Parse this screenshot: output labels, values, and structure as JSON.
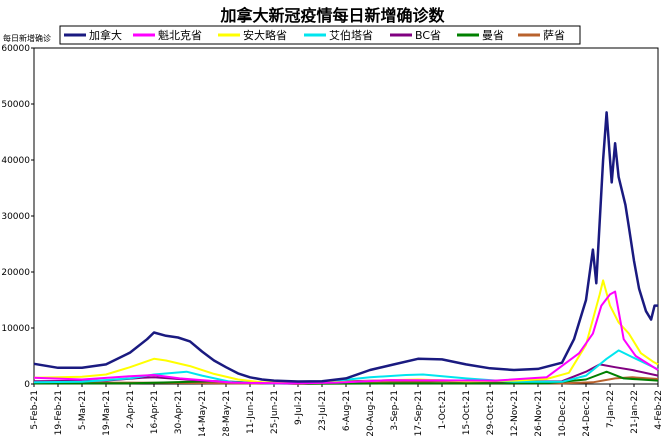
{
  "chart_data": {
    "type": "line",
    "title": "加拿大新冠疫情每日新增确诊数",
    "ylabel": "每日新增确诊",
    "ylim": [
      0,
      60000
    ],
    "yticks": [
      0,
      10000,
      20000,
      30000,
      40000,
      50000,
      60000
    ],
    "x_start": "2021-02-05",
    "x_end": "2022-02-04",
    "x_tick_labels": [
      "5-Feb-21",
      "19-Feb-21",
      "5-Mar-21",
      "19-Mar-21",
      "2-Apr-21",
      "16-Apr-21",
      "30-Apr-21",
      "14-May-21",
      "28-May-21",
      "11-Jun-21",
      "25-Jun-21",
      "9-Jul-21",
      "23-Jul-21",
      "6-Aug-21",
      "20-Aug-21",
      "3-Sep-21",
      "17-Sep-21",
      "1-Oct-21",
      "15-Oct-21",
      "29-Oct-21",
      "12-Nov-21",
      "26-Nov-21",
      "10-Dec-21",
      "24-Dec-21",
      "7-Jan-22",
      "21-Jan-22",
      "4-Feb-22"
    ],
    "grid": false,
    "legend_position": "top",
    "series": [
      {
        "name": "加拿大",
        "color": "#1a1a80",
        "points": [
          [
            "2021-02-05",
            3600
          ],
          [
            "2021-02-19",
            2900
          ],
          [
            "2021-03-05",
            2900
          ],
          [
            "2021-03-19",
            3500
          ],
          [
            "2021-04-02",
            5600
          ],
          [
            "2021-04-12",
            8000
          ],
          [
            "2021-04-16",
            9200
          ],
          [
            "2021-04-23",
            8600
          ],
          [
            "2021-04-30",
            8300
          ],
          [
            "2021-05-07",
            7600
          ],
          [
            "2021-05-14",
            5800
          ],
          [
            "2021-05-21",
            4200
          ],
          [
            "2021-05-28",
            3000
          ],
          [
            "2021-06-04",
            1900
          ],
          [
            "2021-06-11",
            1200
          ],
          [
            "2021-06-18",
            800
          ],
          [
            "2021-06-25",
            600
          ],
          [
            "2021-07-09",
            450
          ],
          [
            "2021-07-23",
            500
          ],
          [
            "2021-08-06",
            1000
          ],
          [
            "2021-08-20",
            2500
          ],
          [
            "2021-09-03",
            3500
          ],
          [
            "2021-09-17",
            4500
          ],
          [
            "2021-10-01",
            4400
          ],
          [
            "2021-10-15",
            3500
          ],
          [
            "2021-10-29",
            2800
          ],
          [
            "2021-11-12",
            2500
          ],
          [
            "2021-11-26",
            2700
          ],
          [
            "2021-12-10",
            3800
          ],
          [
            "2021-12-17",
            8000
          ],
          [
            "2021-12-24",
            15000
          ],
          [
            "2021-12-28",
            24000
          ],
          [
            "2021-12-30",
            18000
          ],
          [
            "2022-01-03",
            40000
          ],
          [
            "2022-01-05",
            48500
          ],
          [
            "2022-01-08",
            36000
          ],
          [
            "2022-01-10",
            43000
          ],
          [
            "2022-01-12",
            37000
          ],
          [
            "2022-01-16",
            32000
          ],
          [
            "2022-01-18",
            28000
          ],
          [
            "2022-01-21",
            22000
          ],
          [
            "2022-01-24",
            17000
          ],
          [
            "2022-01-28",
            13000
          ],
          [
            "2022-01-31",
            11500
          ],
          [
            "2022-02-02",
            14000
          ],
          [
            "2022-02-04",
            14000
          ]
        ]
      },
      {
        "name": "魁北克省",
        "color": "#ff00ff",
        "points": [
          [
            "2021-02-05",
            1100
          ],
          [
            "2021-03-05",
            800
          ],
          [
            "2021-04-02",
            1400
          ],
          [
            "2021-04-16",
            1600
          ],
          [
            "2021-05-01",
            1000
          ],
          [
            "2021-06-01",
            250
          ],
          [
            "2021-07-01",
            100
          ],
          [
            "2021-08-01",
            250
          ],
          [
            "2021-09-01",
            700
          ],
          [
            "2021-10-01",
            650
          ],
          [
            "2021-11-01",
            600
          ],
          [
            "2021-12-01",
            1200
          ],
          [
            "2021-12-20",
            5500
          ],
          [
            "2021-12-28",
            9000
          ],
          [
            "2022-01-02",
            14000
          ],
          [
            "2022-01-07",
            16000
          ],
          [
            "2022-01-10",
            16500
          ],
          [
            "2022-01-15",
            8000
          ],
          [
            "2022-01-22",
            5000
          ],
          [
            "2022-02-04",
            2500
          ]
        ]
      },
      {
        "name": "安大略省",
        "color": "#ffff00",
        "points": [
          [
            "2021-02-05",
            1100
          ],
          [
            "2021-03-05",
            1300
          ],
          [
            "2021-03-19",
            1700
          ],
          [
            "2021-04-02",
            3000
          ],
          [
            "2021-04-16",
            4500
          ],
          [
            "2021-04-23",
            4200
          ],
          [
            "2021-05-07",
            3200
          ],
          [
            "2021-05-21",
            1800
          ],
          [
            "2021-06-04",
            800
          ],
          [
            "2021-06-18",
            300
          ],
          [
            "2021-07-09",
            150
          ],
          [
            "2021-08-01",
            300
          ],
          [
            "2021-09-01",
            700
          ],
          [
            "2021-09-17",
            800
          ],
          [
            "2021-10-15",
            500
          ],
          [
            "2021-11-12",
            600
          ],
          [
            "2021-12-01",
            900
          ],
          [
            "2021-12-14",
            2000
          ],
          [
            "2021-12-24",
            7000
          ],
          [
            "2022-01-01",
            16000
          ],
          [
            "2022-01-03",
            18500
          ],
          [
            "2022-01-07",
            14000
          ],
          [
            "2022-01-12",
            11000
          ],
          [
            "2022-01-18",
            9000
          ],
          [
            "2022-01-25",
            5500
          ],
          [
            "2022-02-01",
            4000
          ],
          [
            "2022-02-04",
            3500
          ]
        ]
      },
      {
        "name": "艾伯塔省",
        "color": "#00e5ee",
        "points": [
          [
            "2021-02-05",
            300
          ],
          [
            "2021-03-05",
            400
          ],
          [
            "2021-04-02",
            1000
          ],
          [
            "2021-04-16",
            1700
          ],
          [
            "2021-05-05",
            2200
          ],
          [
            "2021-05-14",
            1500
          ],
          [
            "2021-06-01",
            300
          ],
          [
            "2021-07-01",
            80
          ],
          [
            "2021-08-01",
            600
          ],
          [
            "2021-08-20",
            1200
          ],
          [
            "2021-09-10",
            1600
          ],
          [
            "2021-09-20",
            1700
          ],
          [
            "2021-10-15",
            1000
          ],
          [
            "2021-11-12",
            400
          ],
          [
            "2021-12-10",
            400
          ],
          [
            "2021-12-24",
            1500
          ],
          [
            "2022-01-05",
            4500
          ],
          [
            "2022-01-12",
            6000
          ],
          [
            "2022-01-20",
            4800
          ],
          [
            "2022-02-04",
            2600
          ]
        ]
      },
      {
        "name": "BC省",
        "color": "#800080",
        "points": [
          [
            "2021-02-05",
            500
          ],
          [
            "2021-03-19",
            600
          ],
          [
            "2021-04-09",
            1100
          ],
          [
            "2021-04-16",
            1200
          ],
          [
            "2021-05-14",
            600
          ],
          [
            "2021-06-11",
            200
          ],
          [
            "2021-07-09",
            50
          ],
          [
            "2021-08-06",
            500
          ],
          [
            "2021-09-10",
            700
          ],
          [
            "2021-10-15",
            600
          ],
          [
            "2021-11-12",
            450
          ],
          [
            "2021-12-10",
            500
          ],
          [
            "2021-12-24",
            2200
          ],
          [
            "2022-01-01",
            3500
          ],
          [
            "2022-01-10",
            3000
          ],
          [
            "2022-01-20",
            2500
          ],
          [
            "2022-02-04",
            1500
          ]
        ]
      },
      {
        "name": "曼省",
        "color": "#008000",
        "points": [
          [
            "2021-02-05",
            100
          ],
          [
            "2021-04-01",
            100
          ],
          [
            "2021-05-14",
            450
          ],
          [
            "2021-05-25",
            500
          ],
          [
            "2021-06-20",
            150
          ],
          [
            "2021-07-15",
            30
          ],
          [
            "2021-09-01",
            100
          ],
          [
            "2021-10-15",
            100
          ],
          [
            "2021-12-01",
            150
          ],
          [
            "2021-12-24",
            800
          ],
          [
            "2022-01-05",
            2200
          ],
          [
            "2022-01-15",
            1000
          ],
          [
            "2022-01-25",
            800
          ],
          [
            "2022-02-04",
            600
          ]
        ]
      },
      {
        "name": "萨省",
        "color": "#b8622d",
        "points": [
          [
            "2021-02-05",
            200
          ],
          [
            "2021-04-01",
            250
          ],
          [
            "2021-05-01",
            200
          ],
          [
            "2021-06-01",
            100
          ],
          [
            "2021-07-15",
            30
          ],
          [
            "2021-09-01",
            300
          ],
          [
            "2021-10-01",
            500
          ],
          [
            "2021-11-01",
            200
          ],
          [
            "2021-12-10",
            100
          ],
          [
            "2021-12-28",
            300
          ],
          [
            "2022-01-10",
            1000
          ],
          [
            "2022-01-20",
            1200
          ],
          [
            "2022-02-04",
            900
          ]
        ]
      }
    ]
  }
}
